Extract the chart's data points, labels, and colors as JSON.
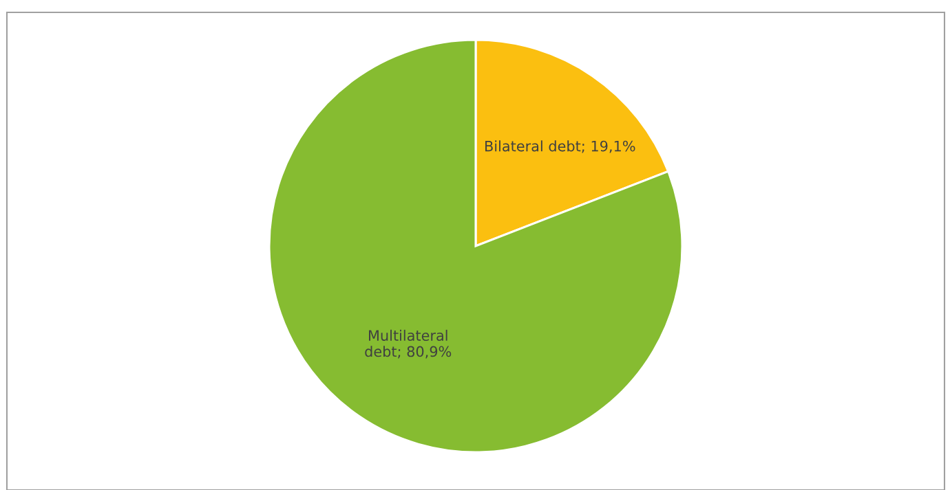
{
  "chart_data": {
    "type": "pie",
    "categories": [
      "Bilateral debt",
      "Multilateral\ndebt"
    ],
    "values": [
      19.1,
      80.9
    ],
    "value_labels": [
      "19,1%",
      "80,9%"
    ],
    "colors": [
      "#fbbf10",
      "#86bc31"
    ],
    "legend": false
  }
}
